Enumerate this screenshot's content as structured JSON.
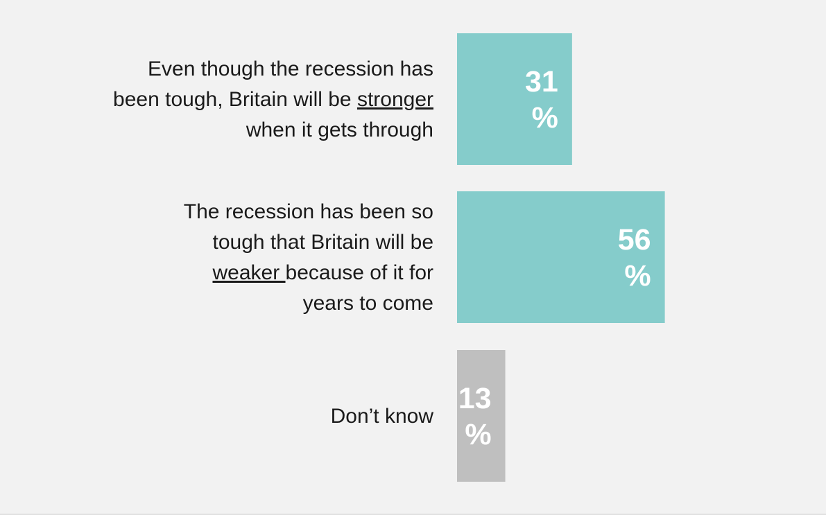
{
  "chart_data": {
    "type": "bar",
    "orientation": "horizontal",
    "categories": [
      {
        "lines": [
          [
            {
              "text": "Even though the recession has",
              "u": false
            }
          ],
          [
            {
              "text": "been tough, Britain will be ",
              "u": false
            },
            {
              "text": "stronger",
              "u": true
            }
          ],
          [
            {
              "text": "when it gets through",
              "u": false
            }
          ]
        ]
      },
      {
        "lines": [
          [
            {
              "text": "The recession has been so",
              "u": false
            }
          ],
          [
            {
              "text": "tough that Britain will be",
              "u": false
            }
          ],
          [
            {
              "text": "weaker ",
              "u": true
            },
            {
              "text": "because of it for",
              "u": false
            }
          ],
          [
            {
              "text": "years to come",
              "u": false
            }
          ]
        ]
      },
      {
        "lines": [
          [
            {
              "text": "Don’t know",
              "u": false
            }
          ]
        ]
      }
    ],
    "values": [
      31,
      56,
      13
    ],
    "value_labels": [
      [
        "31",
        "%"
      ],
      [
        "56",
        "%"
      ],
      [
        "13",
        "%"
      ]
    ],
    "colors": [
      "#85cccb",
      "#85cccb",
      "#bfbfbf"
    ],
    "xlim": [
      0,
      100
    ],
    "grid": false,
    "legend": "none"
  }
}
